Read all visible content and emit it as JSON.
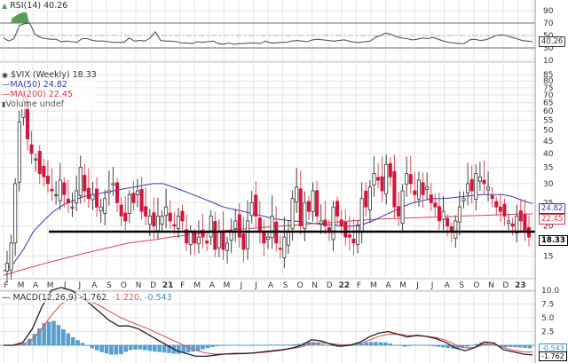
{
  "rsi_panel": {
    "label": "RSI(14) 40.26",
    "current_value": "40.26",
    "axis_ticks": [
      "90",
      "70",
      "50",
      "30",
      "10"
    ]
  },
  "price_panel": {
    "title": "$VIX (Weekly) 18.33",
    "legend": [
      {
        "label": "MA(50) 24.82",
        "color": "#3a3aa8"
      },
      {
        "label": "MA(200) 22.45",
        "color": "#d4394a"
      },
      {
        "label": "Volume undef",
        "color": "#555555"
      }
    ],
    "axis_ticks": [
      "85",
      "80",
      "75",
      "70",
      "65",
      "60",
      "55",
      "50",
      "45",
      "40",
      "35",
      "30",
      "25",
      "20",
      "15"
    ],
    "value_tags": [
      {
        "label": "24.82",
        "color": "#3a3aa8"
      },
      {
        "label": "22.45",
        "color": "#d4394a"
      },
      {
        "label": "18.33",
        "color": "#000000"
      }
    ],
    "support_line": 20
  },
  "x_axis": {
    "labels": [
      "F",
      "M",
      "A",
      "M",
      "J",
      "J",
      "A",
      "S",
      "O",
      "N",
      "D",
      "21",
      "F",
      "M",
      "A",
      "M",
      "J",
      "J",
      "A",
      "S",
      "O",
      "N",
      "D",
      "22",
      "F",
      "M",
      "A",
      "M",
      "J",
      "J",
      "A",
      "S",
      "O",
      "N",
      "D",
      "23"
    ]
  },
  "macd_panel": {
    "label_main": "MACD(12,26,9) -1.762",
    "label_signal": ", -1.220",
    "label_hist": ", -0.543",
    "axis_ticks": [
      "10.0",
      "7.5",
      "5.0",
      "2.5"
    ],
    "value_tags": [
      {
        "label": "-0.543",
        "color": "#3a8fc8"
      },
      {
        "label": "-1.762",
        "color": "#000000"
      }
    ]
  },
  "chart_data": {
    "type": "candlestick",
    "title": "$VIX (Weekly)",
    "last_close": 18.33,
    "x_range": [
      "2020-02",
      "2023-01"
    ],
    "ylim": [
      12,
      85
    ],
    "y_scale": "log",
    "series": [
      {
        "name": "MA(50)",
        "last": 24.82
      },
      {
        "name": "MA(200)",
        "last": 22.45
      },
      {
        "name": "Support line",
        "value": 20
      }
    ],
    "approx_weekly_close": [
      14,
      17,
      30,
      54,
      66,
      46,
      40,
      38,
      33,
      32,
      30,
      28,
      27,
      31,
      27,
      25,
      24,
      28,
      35,
      28,
      26,
      27,
      24,
      24,
      26,
      28,
      30,
      25,
      22,
      21,
      27,
      25,
      28,
      23,
      22,
      22,
      20,
      22,
      22,
      24,
      21,
      20,
      22,
      21,
      17,
      19,
      17,
      18,
      18,
      17,
      22,
      16,
      19,
      16,
      17,
      19,
      21,
      18,
      16,
      21,
      25,
      22,
      19,
      17,
      18,
      22,
      17,
      16,
      18,
      19,
      26,
      29,
      20,
      25,
      23,
      28,
      22,
      21,
      20,
      19,
      24,
      22,
      20,
      18,
      18,
      17,
      20,
      26,
      24,
      29,
      33,
      31,
      28,
      36,
      32,
      24,
      22,
      28,
      33,
      30,
      27,
      31,
      27,
      29,
      25,
      24,
      21,
      23,
      20,
      19,
      21,
      24,
      26,
      30,
      28,
      33,
      32,
      30,
      29,
      26,
      24,
      23,
      22,
      21,
      20,
      22,
      21,
      19,
      18
    ]
  },
  "indicators": {
    "rsi": {
      "period": 14,
      "last": 40.26,
      "overbought": 70,
      "oversold": 30
    },
    "macd": {
      "params": "12,26,9",
      "macd": -1.762,
      "signal": -1.22,
      "histogram": -0.543
    }
  }
}
